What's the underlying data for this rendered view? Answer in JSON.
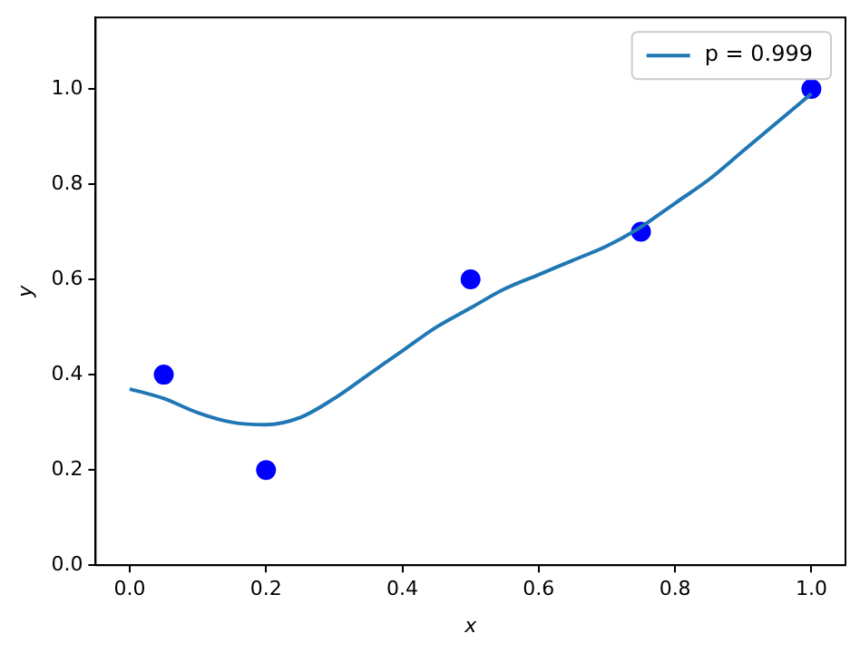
{
  "chart_data": {
    "type": "scatter",
    "xlabel": "x",
    "ylabel": "y",
    "xlim": [
      -0.05,
      1.05
    ],
    "ylim": [
      0,
      1.15
    ],
    "xticks": [
      {
        "value": 0,
        "label": "0.0"
      },
      {
        "value": 0.2,
        "label": "0.2"
      },
      {
        "value": 0.4,
        "label": "0.4"
      },
      {
        "value": 0.6,
        "label": "0.6"
      },
      {
        "value": 0.8,
        "label": "0.8"
      },
      {
        "value": 1,
        "label": "1.0"
      }
    ],
    "yticks": [
      {
        "value": 0,
        "label": "0.0"
      },
      {
        "value": 0.2,
        "label": "0.2"
      },
      {
        "value": 0.4,
        "label": "0.4"
      },
      {
        "value": 0.6,
        "label": "0.6"
      },
      {
        "value": 0.8,
        "label": "0.8"
      },
      {
        "value": 1,
        "label": "1.0"
      }
    ],
    "grid": false,
    "legend": "top right",
    "marker": "circle",
    "series": [
      {
        "name": "p = 0.999",
        "type": "line",
        "marker": "none",
        "color": "#1f77b4",
        "x": [
          0,
          0.05,
          0.1,
          0.15,
          0.2,
          0.25,
          0.3,
          0.35,
          0.4,
          0.45,
          0.5,
          0.55,
          0.6,
          0.65,
          0.7,
          0.75,
          0.8,
          0.85,
          0.9,
          0.95,
          1.0
        ],
        "values": [
          0.37,
          0.35,
          0.32,
          0.3,
          0.295,
          0.31,
          0.35,
          0.4,
          0.45,
          0.5,
          0.54,
          0.58,
          0.61,
          0.64,
          0.67,
          0.71,
          0.76,
          0.81,
          0.87,
          0.93,
          0.99
        ]
      },
      {
        "color": "#0000ff",
        "x": [
          0.05,
          0.2,
          0.5,
          0.75,
          1.0
        ],
        "values": [
          0.4,
          0.2,
          0.6,
          0.7,
          1.0
        ]
      }
    ]
  }
}
